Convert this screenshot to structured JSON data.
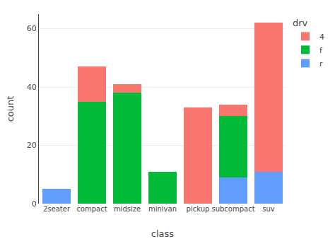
{
  "chart_data": {
    "type": "bar",
    "categories": [
      "2seater",
      "compact",
      "midsize",
      "minivan",
      "pickup",
      "subcompact",
      "suv"
    ],
    "series": [
      {
        "name": "r",
        "color": "#619CFF",
        "values": [
          5,
          0,
          0,
          0,
          0,
          9,
          11
        ]
      },
      {
        "name": "f",
        "color": "#00BA38",
        "values": [
          0,
          35,
          38,
          11,
          0,
          21,
          0
        ]
      },
      {
        "name": "4",
        "color": "#F8766D",
        "values": [
          0,
          12,
          3,
          0,
          33,
          4,
          51
        ]
      }
    ],
    "xlabel": "class",
    "ylabel": "count",
    "ylim": [
      0,
      65
    ],
    "yticks": [
      0,
      20,
      40,
      60
    ],
    "grid": true,
    "stacked": true,
    "legend": "right",
    "legend_title": "drv"
  }
}
